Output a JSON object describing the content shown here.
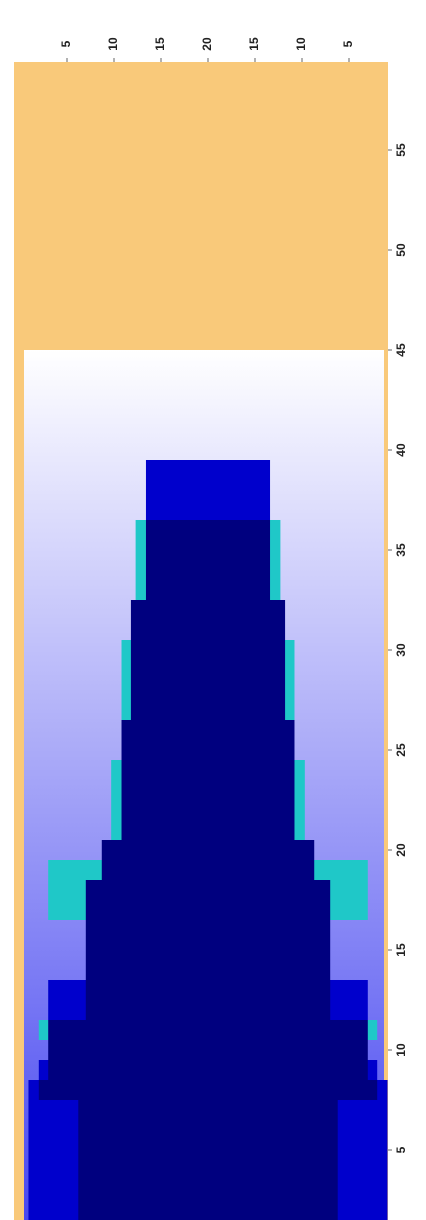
{
  "chart_data": {
    "type": "stepped_pyramid",
    "x": [
      2,
      3,
      4,
      5,
      6,
      7,
      8,
      9,
      10,
      11,
      12,
      13,
      14,
      15,
      16,
      17,
      18,
      19,
      20,
      21,
      22,
      23,
      24,
      25,
      26,
      27,
      28,
      29,
      30,
      31,
      32,
      33,
      34,
      35,
      36,
      37,
      38,
      39
    ],
    "series": [
      {
        "color": "#0000cc",
        "values": [
          19.1,
          19.1,
          19.1,
          19.1,
          19.1,
          19.1,
          19.1,
          18,
          null,
          null,
          17,
          17,
          null,
          null,
          null,
          null,
          null,
          null,
          null,
          null,
          null,
          null,
          null,
          null,
          null,
          null,
          null,
          null,
          null,
          null,
          null,
          null,
          null,
          null,
          null,
          6.6,
          6.6,
          6.6
        ]
      },
      {
        "color": "#1fc8c8",
        "values": [
          null,
          null,
          null,
          null,
          null,
          null,
          null,
          null,
          null,
          18,
          null,
          null,
          null,
          null,
          null,
          17,
          17,
          17,
          null,
          10.3,
          10.3,
          10.3,
          10.3,
          null,
          null,
          9.2,
          9.2,
          9.2,
          9.2,
          null,
          null,
          7.7,
          7.7,
          7.7,
          7.7,
          null,
          null,
          null
        ]
      },
      {
        "color": "#00007f",
        "values": [
          13.8,
          13.8,
          13.8,
          13.8,
          13.8,
          13.8,
          18,
          17,
          17,
          17,
          13,
          13,
          13,
          13,
          13,
          13,
          13,
          11.3,
          11.3,
          9.2,
          9.2,
          9.2,
          9.2,
          9.2,
          9.2,
          8.2,
          8.2,
          8.2,
          8.2,
          8.2,
          8.2,
          6.6,
          6.6,
          6.6,
          6.6,
          null,
          null,
          null
        ]
      }
    ],
    "xlim": [
      0,
      40
    ],
    "xticks": [
      5,
      10,
      15,
      20,
      {
        "value": 25,
        "label": "15"
      },
      {
        "value": 30,
        "label": "10"
      },
      {
        "value": 35,
        "label": "5"
      }
    ],
    "ylim": [
      1.5,
      59.4
    ],
    "yticks": [
      5,
      10,
      15,
      20,
      25,
      30,
      35,
      40,
      45,
      50,
      55
    ],
    "fill_limit": 45,
    "background_color": "#f9c97a"
  }
}
